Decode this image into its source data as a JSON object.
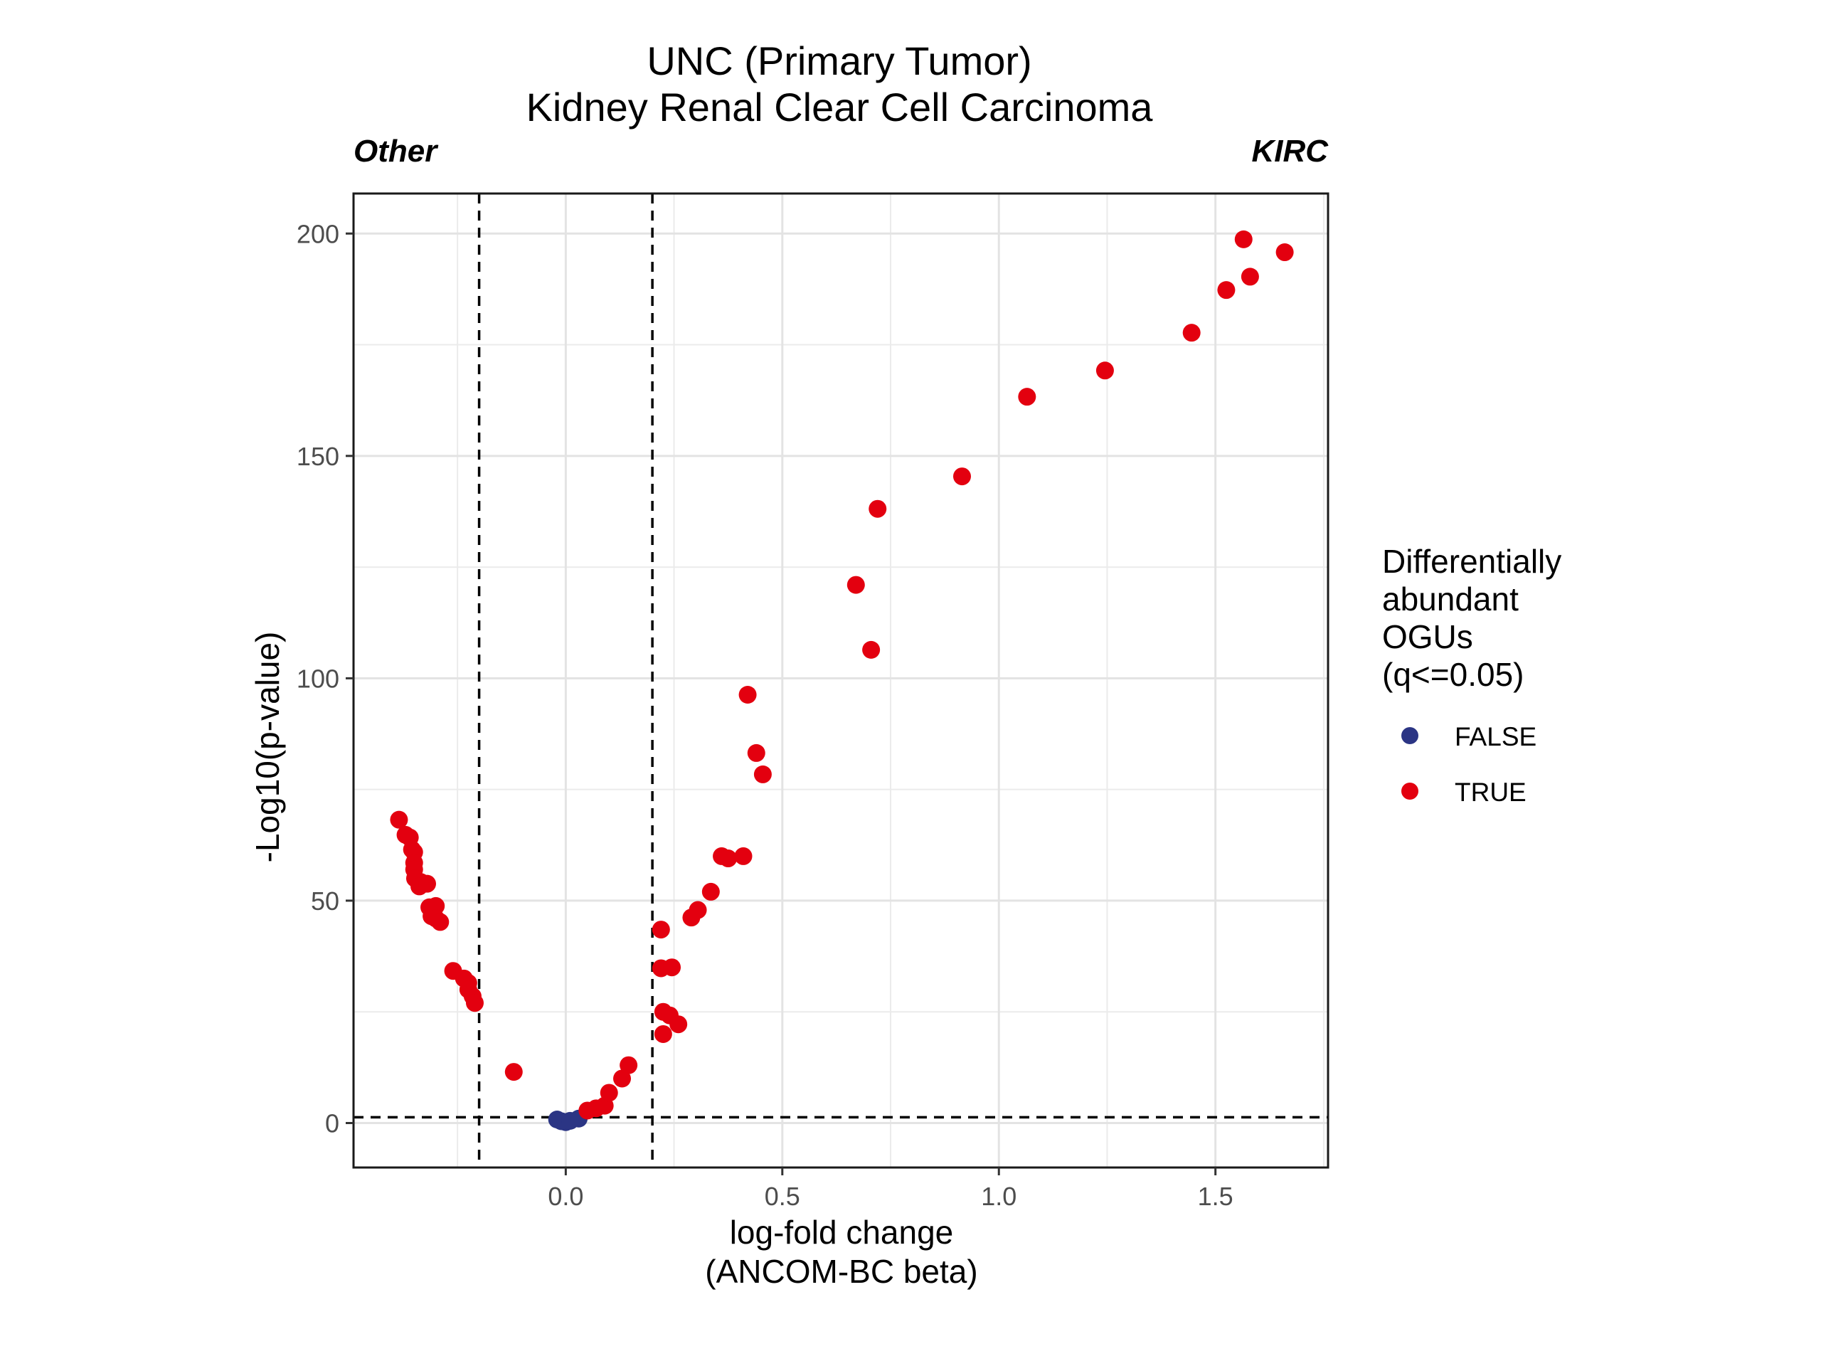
{
  "chart_data": {
    "type": "scatter",
    "title": "UNC (Primary Tumor)",
    "subtitle": "Kidney Renal Clear Cell Carcinoma",
    "left_label": "Other",
    "right_label": "KIRC",
    "xlabel": [
      "log-fold change",
      "(ANCOM-BC beta)"
    ],
    "ylabel": "-Log10(p-value)",
    "xlim": [
      -0.49,
      1.76
    ],
    "ylim": [
      -10,
      209
    ],
    "x_ticks": [
      0.0,
      0.5,
      1.0,
      1.5
    ],
    "x_tick_labels": [
      "0.0",
      "0.5",
      "1.0",
      "1.5"
    ],
    "y_ticks": [
      0,
      50,
      100,
      150,
      200
    ],
    "y_tick_labels": [
      "0",
      "50",
      "100",
      "150",
      "200"
    ],
    "grid": true,
    "reference_lines": {
      "vertical": [
        -0.2,
        0.2
      ],
      "horizontal": [
        1.3
      ]
    },
    "legend": {
      "title": [
        "Differentially",
        "abundant",
        "OGUs",
        "(q<=0.05)"
      ],
      "position": "right",
      "items": [
        {
          "label": "FALSE",
          "color": "#2b3584"
        },
        {
          "label": "TRUE",
          "color": "#e3000f"
        }
      ]
    },
    "series": [
      {
        "name": "FALSE",
        "color": "#2b3584",
        "points": [
          [
            -0.02,
            0.8
          ],
          [
            -0.01,
            0.4
          ],
          [
            0.0,
            0.2
          ],
          [
            0.01,
            0.5
          ],
          [
            0.03,
            1.0
          ]
        ]
      },
      {
        "name": "TRUE",
        "color": "#e3000f",
        "points": [
          [
            -0.385,
            68.2
          ],
          [
            -0.37,
            64.8
          ],
          [
            -0.36,
            64.2
          ],
          [
            -0.355,
            61.5
          ],
          [
            -0.35,
            60.9
          ],
          [
            -0.35,
            58.5
          ],
          [
            -0.35,
            57.0
          ],
          [
            -0.348,
            55.0
          ],
          [
            -0.335,
            54.2
          ],
          [
            -0.338,
            53.2
          ],
          [
            -0.32,
            53.8
          ],
          [
            -0.315,
            48.5
          ],
          [
            -0.31,
            46.5
          ],
          [
            -0.3,
            48.8
          ],
          [
            -0.3,
            46.0
          ],
          [
            -0.29,
            45.2
          ],
          [
            -0.26,
            34.2
          ],
          [
            -0.235,
            32.5
          ],
          [
            -0.225,
            31.5
          ],
          [
            -0.225,
            30.0
          ],
          [
            -0.215,
            28.5
          ],
          [
            -0.21,
            27.0
          ],
          [
            -0.12,
            11.5
          ],
          [
            0.05,
            2.8
          ],
          [
            0.07,
            3.3
          ],
          [
            0.09,
            3.9
          ],
          [
            0.1,
            6.8
          ],
          [
            0.13,
            10.0
          ],
          [
            0.145,
            13.0
          ],
          [
            0.22,
            43.5
          ],
          [
            0.22,
            34.8
          ],
          [
            0.245,
            35.0
          ],
          [
            0.225,
            25.0
          ],
          [
            0.24,
            24.2
          ],
          [
            0.225,
            20.0
          ],
          [
            0.26,
            22.2
          ],
          [
            0.29,
            46.2
          ],
          [
            0.305,
            47.9
          ],
          [
            0.335,
            52.0
          ],
          [
            0.36,
            60.0
          ],
          [
            0.375,
            59.5
          ],
          [
            0.41,
            60.0
          ],
          [
            0.42,
            96.3
          ],
          [
            0.44,
            83.2
          ],
          [
            0.455,
            78.4
          ],
          [
            0.67,
            121.0
          ],
          [
            0.705,
            106.4
          ],
          [
            0.72,
            138.1
          ],
          [
            0.915,
            145.4
          ],
          [
            1.065,
            163.3
          ],
          [
            1.245,
            169.2
          ],
          [
            1.445,
            177.7
          ],
          [
            1.525,
            187.3
          ],
          [
            1.565,
            198.7
          ],
          [
            1.58,
            190.3
          ],
          [
            1.66,
            195.8
          ]
        ]
      }
    ]
  }
}
